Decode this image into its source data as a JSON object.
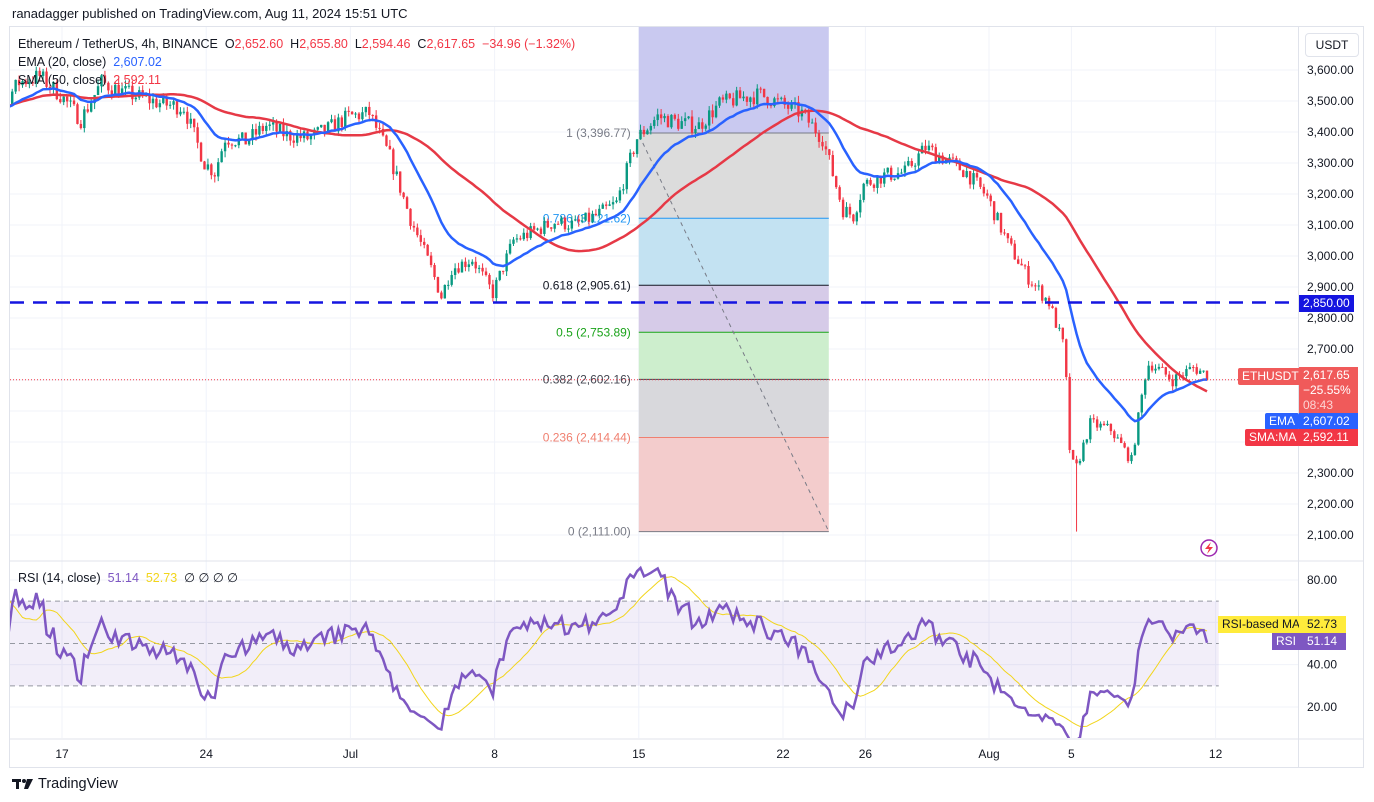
{
  "header": {
    "published": "ranadagger published on TradingView.com, Aug 11, 2024 15:51 UTC",
    "symbol_line": "Ethereum / TetherUS, 4h, BINANCE",
    "open_label": "O",
    "open": "2,652.60",
    "high_label": "H",
    "high": "2,655.80",
    "low_label": "L",
    "low": "2,594.46",
    "close_label": "C",
    "close": "2,617.65",
    "change": "−34.96 (−1.32%)",
    "ema_label": "EMA (20, close)",
    "ema_value": "2,607.02",
    "sma_label": "SMA (50, close)",
    "sma_value": "2,592.11"
  },
  "rsi_legend": {
    "label": "RSI (14, close)",
    "rsi": "51.14",
    "ma": "52.73",
    "extras": "∅  ∅  ∅  ∅"
  },
  "axis": {
    "currency": "USDT",
    "price_ticks": [
      "3,600.00",
      "3,500.00",
      "3,400.00",
      "3,300.00",
      "3,200.00",
      "3,100.00",
      "3,000.00",
      "2,900.00",
      "2,800.00",
      "2,700.00",
      "2,300.00",
      "2,200.00",
      "2,100.00"
    ],
    "rsi_ticks": [
      "80.00",
      "40.00",
      "20.00"
    ],
    "date_ticks": [
      "17",
      "24",
      "Jul",
      "8",
      "15",
      "22",
      "26",
      "Aug",
      "5",
      "12"
    ]
  },
  "badges": {
    "level": "2,850.00",
    "symbol": "ETHUSDT",
    "last_price": "2,617.65",
    "last_change": "−25.55%",
    "countdown": "08:43",
    "ema_tag": "EMA",
    "ema_value": "2,607.02",
    "sma_tag": "SMA:MA",
    "sma_value": "2,592.11",
    "rsi_ma_tag": "RSI-based MA",
    "rsi_ma_value": "52.73",
    "rsi_tag": "RSI",
    "rsi_value": "51.14"
  },
  "colors": {
    "up": "#089981",
    "down": "#f23645",
    "ema": "#2962ff",
    "sma": "#e63946",
    "rsi": "#7e57c2",
    "rsi_ma": "#f2d51b",
    "level": "#1515e0"
  },
  "chart_data": {
    "type": "candlestick",
    "timeframe": "4h",
    "ylim": [
      2100,
      3600
    ],
    "rsi_ylim": [
      20,
      80
    ],
    "horizontal_level": 2850,
    "last_candle": {
      "open": 2652.6,
      "high": 2655.8,
      "low": 2594.46,
      "close": 2617.65
    },
    "ema": {
      "period": 20,
      "value": 2607.02
    },
    "sma": {
      "period": 50,
      "value": 2592.11
    },
    "rsi": {
      "period": 14,
      "value": 51.14,
      "ma": 52.73,
      "bands": [
        30,
        50,
        70
      ]
    },
    "fib_retracement": {
      "from": {
        "date": "2024-07-15",
        "price": 3396.77
      },
      "to": {
        "date": "2024-07-25",
        "price": 2111.0
      },
      "levels": [
        {
          "label": "1 (3,396.77)",
          "price": 3396.77,
          "color": "#787b86"
        },
        {
          "label": "0.786 (3,121.62)",
          "price": 3121.62,
          "color": "#2196f3"
        },
        {
          "label": "0.618 (2,905.61)",
          "price": 2905.61,
          "color": "#131722"
        },
        {
          "label": "0.5 (2,753.89)",
          "price": 2753.89,
          "color": "#1aa31a"
        },
        {
          "label": "0.382 (2,602.16)",
          "price": 2602.16,
          "color": "#434651"
        },
        {
          "label": "0.236 (2,414.44)",
          "price": 2414.44,
          "color": "#f08070"
        },
        {
          "label": "0 (2,111.00)",
          "price": 2111.0,
          "color": "#787b86"
        }
      ]
    },
    "notable_low": {
      "date": "2024-08-05T04:00",
      "low": 2111
    },
    "close_approx": [
      [
        "2024-06-12",
        3500
      ],
      [
        "2024-06-13",
        3480
      ],
      [
        "2024-06-14",
        3470
      ],
      [
        "2024-06-15",
        3560
      ],
      [
        "2024-06-16",
        3580
      ],
      [
        "2024-06-17",
        3520
      ],
      [
        "2024-06-18",
        3440
      ],
      [
        "2024-06-19",
        3560
      ],
      [
        "2024-06-20",
        3530
      ],
      [
        "2024-06-21",
        3510
      ],
      [
        "2024-06-22",
        3490
      ],
      [
        "2024-06-23",
        3480
      ],
      [
        "2024-06-24",
        3300
      ],
      [
        "2024-06-24T12:00",
        3270
      ],
      [
        "2024-06-25",
        3380
      ],
      [
        "2024-06-26",
        3370
      ],
      [
        "2024-06-27",
        3420
      ],
      [
        "2024-06-28",
        3390
      ],
      [
        "2024-06-29",
        3380
      ],
      [
        "2024-06-30",
        3410
      ],
      [
        "2024-07-01",
        3450
      ],
      [
        "2024-07-02",
        3460
      ],
      [
        "2024-07-03",
        3320
      ],
      [
        "2024-07-04",
        3120
      ],
      [
        "2024-07-05",
        2960
      ],
      [
        "2024-07-05T12:00",
        2870
      ],
      [
        "2024-07-06",
        2960
      ],
      [
        "2024-07-07",
        2990
      ],
      [
        "2024-07-08",
        2880
      ],
      [
        "2024-07-09",
        3050
      ],
      [
        "2024-07-10",
        3080
      ],
      [
        "2024-07-11",
        3110
      ],
      [
        "2024-07-12",
        3100
      ],
      [
        "2024-07-13",
        3130
      ],
      [
        "2024-07-14",
        3170
      ],
      [
        "2024-07-15",
        3380
      ],
      [
        "2024-07-16",
        3450
      ],
      [
        "2024-07-17",
        3430
      ],
      [
        "2024-07-18",
        3420
      ],
      [
        "2024-07-19",
        3490
      ],
      [
        "2024-07-20",
        3510
      ],
      [
        "2024-07-21",
        3520
      ],
      [
        "2024-07-22",
        3490
      ],
      [
        "2024-07-23",
        3460
      ],
      [
        "2024-07-24",
        3380
      ],
      [
        "2024-07-25",
        3150
      ],
      [
        "2024-07-25T12:00",
        3130
      ],
      [
        "2024-07-26",
        3230
      ],
      [
        "2024-07-27",
        3260
      ],
      [
        "2024-07-28",
        3270
      ],
      [
        "2024-07-29",
        3350
      ],
      [
        "2024-07-30",
        3310
      ],
      [
        "2024-07-31",
        3270
      ],
      [
        "2024-08-01",
        3190
      ],
      [
        "2024-08-02",
        3040
      ],
      [
        "2024-08-03",
        2930
      ],
      [
        "2024-08-04",
        2850
      ],
      [
        "2024-08-04T18:00",
        2700
      ],
      [
        "2024-08-05",
        2380
      ],
      [
        "2024-08-05T06:00",
        2300
      ],
      [
        "2024-08-06",
        2460
      ],
      [
        "2024-08-07",
        2440
      ],
      [
        "2024-08-08",
        2340
      ],
      [
        "2024-08-08T18:00",
        2650
      ],
      [
        "2024-08-09",
        2650
      ],
      [
        "2024-08-10",
        2600
      ],
      [
        "2024-08-11",
        2640
      ],
      [
        "2024-08-11T16:00",
        2617.65
      ]
    ]
  }
}
